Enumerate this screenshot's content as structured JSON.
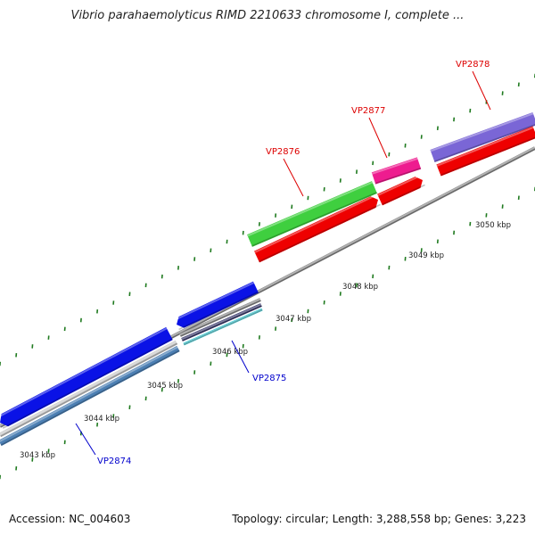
{
  "map": {
    "title": "Vibrio parahaemolyticus RIMD 2210633 chromosome I, complete ...",
    "accession_text": "Accession: NC_004603",
    "summary_text": "Topology: circular; Length: 3,288,558 bp; Genes: 3,223"
  },
  "colors": {
    "backbone": "#8a8a8a",
    "tick": "#1f7a1f",
    "forward_label": "#dd0000",
    "reverse_label": "#0000cc",
    "green_gene": "#3fcf3f",
    "red_gene": "#ee0000",
    "magenta_gene": "#ee1c8f",
    "purple_gene": "#7a66d6",
    "blue_gene": "#0a12e6",
    "cyan_gene": "#38c6cf",
    "steel_gene": "#4c7fb3"
  },
  "ticks": [
    "3043 kbp",
    "3044 kbp",
    "3045 kbp",
    "3046 kbp",
    "3047 kbp",
    "3048 kbp",
    "3049 kbp",
    "3050 kbp"
  ],
  "genes": [
    {
      "label": "VP2874",
      "strand": "reverse"
    },
    {
      "label": "VP2875",
      "strand": "reverse"
    },
    {
      "label": "VP2876",
      "strand": "forward"
    },
    {
      "label": "VP2877",
      "strand": "forward"
    },
    {
      "label": "VP2878",
      "strand": "forward"
    }
  ]
}
